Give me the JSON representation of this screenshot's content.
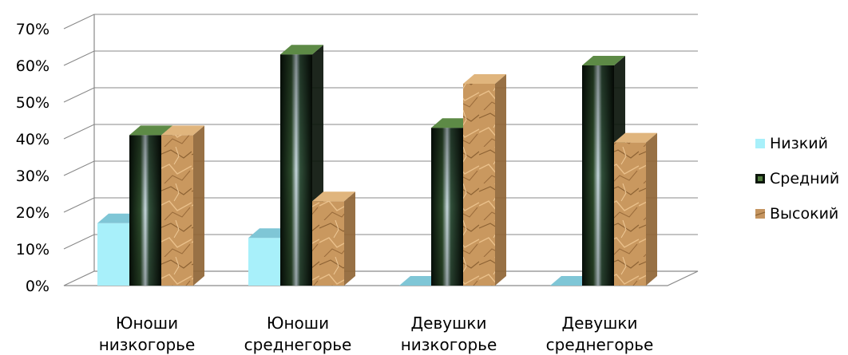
{
  "chart_data": {
    "type": "bar",
    "title": "",
    "xlabel": "",
    "ylabel": "",
    "ylim": [
      0,
      70
    ],
    "y_ticks": [
      "0%",
      "10%",
      "20%",
      "30%",
      "40%",
      "50%",
      "60%",
      "70%"
    ],
    "categories": [
      [
        "Юноши",
        "низкогорье"
      ],
      [
        "Юноши",
        "среднегорье"
      ],
      [
        "Девушки",
        "низкогорье"
      ],
      [
        "Девушки",
        "среднегорье"
      ]
    ],
    "series": [
      {
        "name": "Низкий",
        "values": [
          17,
          13,
          0,
          0
        ]
      },
      {
        "name": "Средний",
        "values": [
          41,
          63,
          43,
          60
        ]
      },
      {
        "name": "Высокий",
        "values": [
          41,
          23,
          55,
          39
        ]
      }
    ],
    "grid": true,
    "legend_position": "right",
    "style": "3d-column",
    "colors": {
      "low_front": "#a8f0fa",
      "low_top": "#7fc6d6",
      "mid_base": "#0c160c",
      "mid_accent": "#4f7a3c",
      "high_base": "#c59560",
      "high_dark": "#8f6535",
      "grid": "#888888"
    }
  }
}
